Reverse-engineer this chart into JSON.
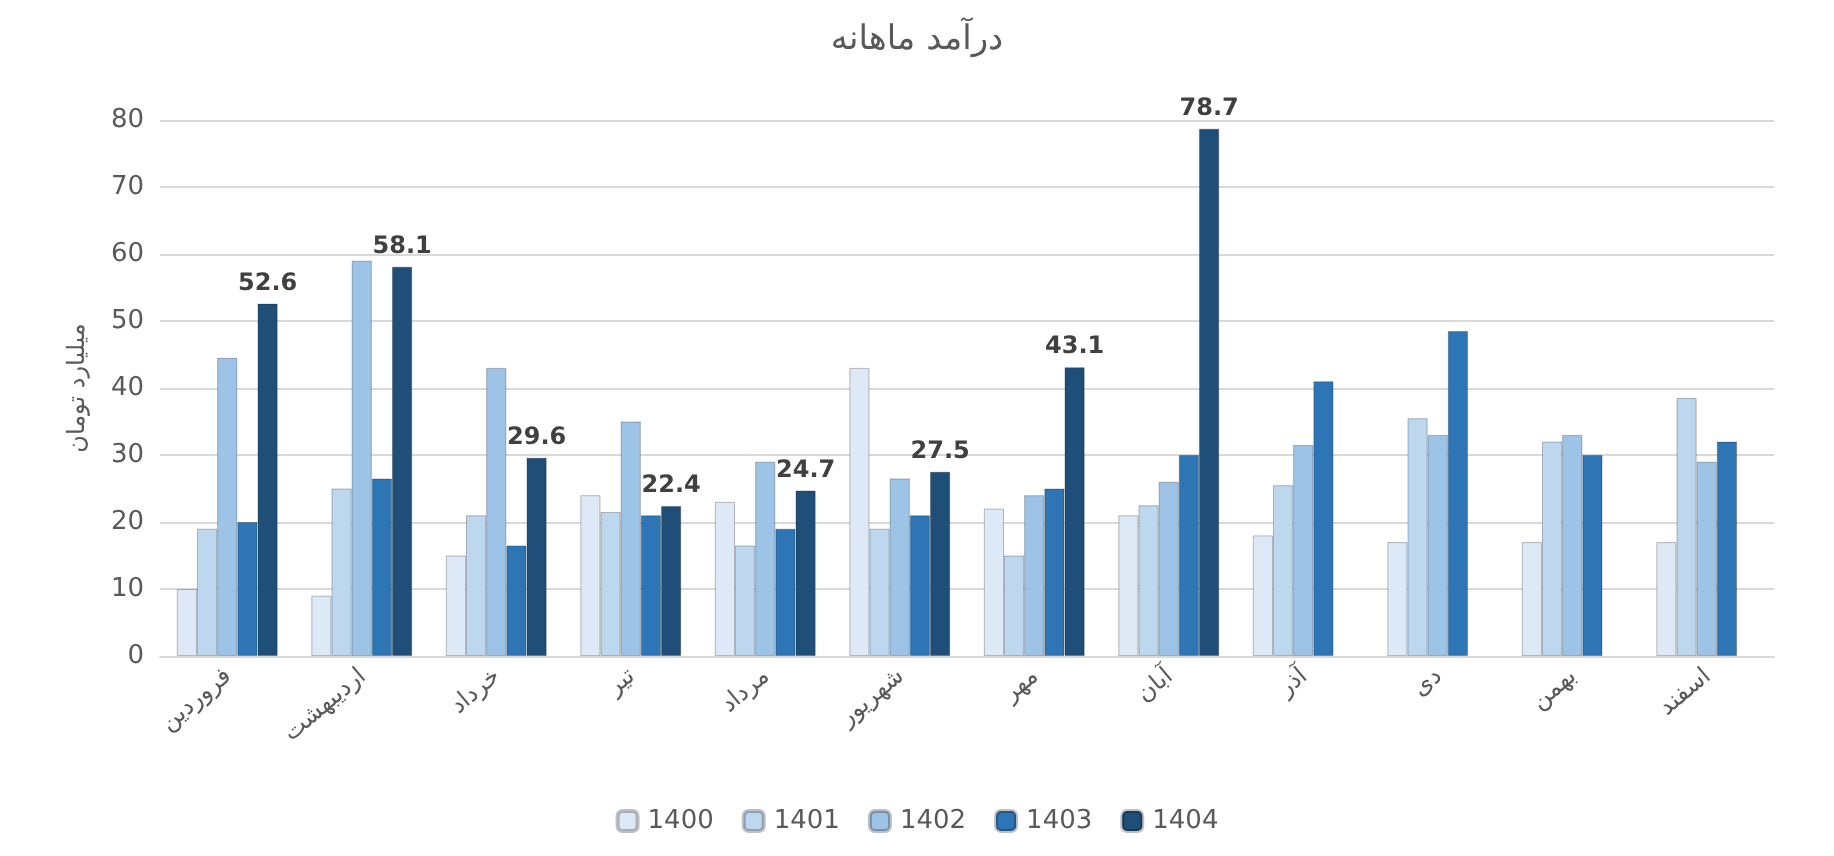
{
  "chart_data": {
    "type": "bar",
    "title": "درآمد ماهانه",
    "ylabel": "میلیارد تومان",
    "categories": [
      "فروردین",
      "اردیبهشت",
      "خرداد",
      "تیر",
      "مرداد",
      "شهریور",
      "مهر",
      "آبان",
      "آذر",
      "دی",
      "بهمن",
      "اسفند"
    ],
    "series": [
      {
        "name": "1400",
        "color": "#dde9f7",
        "values": [
          10,
          9,
          15,
          24,
          23,
          43,
          22,
          21,
          18,
          17,
          17,
          17
        ]
      },
      {
        "name": "1401",
        "color": "#bdd7ee",
        "values": [
          19,
          25,
          21,
          21.5,
          16.5,
          19,
          15,
          22.5,
          25.5,
          35.5,
          32,
          38.5
        ]
      },
      {
        "name": "1402",
        "color": "#9dc3e6",
        "values": [
          44.5,
          59,
          43,
          35,
          29,
          26.5,
          24,
          26,
          31.5,
          33,
          33,
          29
        ]
      },
      {
        "name": "1403",
        "color": "#2e75b6",
        "values": [
          20,
          26.5,
          16.5,
          21,
          19,
          21,
          25,
          30,
          41,
          48.5,
          30,
          32
        ]
      },
      {
        "name": "1404",
        "color": "#1f4e79",
        "values": [
          52.6,
          58.1,
          29.6,
          22.4,
          24.7,
          27.5,
          43.1,
          78.7,
          null,
          null,
          null,
          null
        ],
        "value_labels": [
          "52.6",
          "58.1",
          "29.6",
          "22.4",
          "24.7",
          "27.5",
          "43.1",
          "78.7",
          null,
          null,
          null,
          null
        ]
      }
    ],
    "ylim": [
      0,
      80
    ],
    "yticks": [
      0,
      10,
      20,
      30,
      40,
      50,
      60,
      70,
      80
    ],
    "grid": "y",
    "legend": "bottom"
  }
}
